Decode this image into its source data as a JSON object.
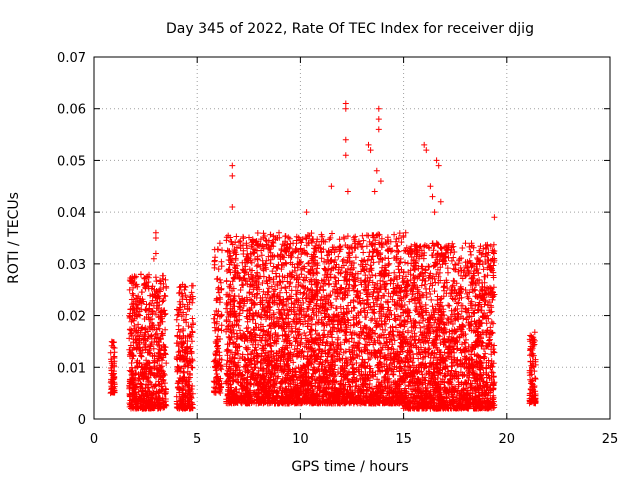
{
  "chart_data": {
    "type": "scatter",
    "title": "Day 345 of 2022, Rate Of TEC Index for receiver djig",
    "xlabel": "GPS time / hours",
    "ylabel": "ROTI / TECUs",
    "xlim": [
      0,
      25
    ],
    "ylim": [
      0,
      0.07
    ],
    "xticks": [
      0,
      5,
      10,
      15,
      20,
      25
    ],
    "yticks": [
      0,
      0.01,
      0.02,
      0.03,
      0.04,
      0.05,
      0.06,
      0.07
    ],
    "xtick_labels": [
      "0",
      "5",
      "10",
      "15",
      "20",
      "25"
    ],
    "ytick_labels": [
      "0",
      "0.01",
      "0.02",
      "0.03",
      "0.04",
      "0.05",
      "0.06",
      "0.07"
    ],
    "grid": true,
    "marker": "plus",
    "color": "#ff0000",
    "clusters": [
      {
        "x_range": [
          0.8,
          1.0
        ],
        "y_range": [
          0.005,
          0.015
        ],
        "density": 60
      },
      {
        "x_range": [
          1.7,
          3.5
        ],
        "y_range": [
          0.002,
          0.028
        ],
        "density": 700
      },
      {
        "x_range": [
          4.0,
          4.8
        ],
        "y_range": [
          0.002,
          0.026
        ],
        "density": 280
      },
      {
        "x_range": [
          5.8,
          6.2
        ],
        "y_range": [
          0.005,
          0.034
        ],
        "density": 120
      },
      {
        "x_range": [
          6.4,
          15.0
        ],
        "y_range": [
          0.003,
          0.036
        ],
        "density": 3600
      },
      {
        "x_range": [
          15.0,
          19.4
        ],
        "y_range": [
          0.002,
          0.034
        ],
        "density": 1900
      },
      {
        "x_range": [
          21.1,
          21.4
        ],
        "y_range": [
          0.003,
          0.017
        ],
        "density": 110
      }
    ],
    "notable_points": [
      {
        "x": 6.7,
        "y": 0.049
      },
      {
        "x": 6.7,
        "y": 0.047
      },
      {
        "x": 6.7,
        "y": 0.041
      },
      {
        "x": 12.2,
        "y": 0.061
      },
      {
        "x": 12.2,
        "y": 0.06
      },
      {
        "x": 12.2,
        "y": 0.054
      },
      {
        "x": 12.2,
        "y": 0.051
      },
      {
        "x": 12.3,
        "y": 0.044
      },
      {
        "x": 11.5,
        "y": 0.045
      },
      {
        "x": 10.3,
        "y": 0.04
      },
      {
        "x": 13.3,
        "y": 0.053
      },
      {
        "x": 13.4,
        "y": 0.052
      },
      {
        "x": 13.8,
        "y": 0.06
      },
      {
        "x": 13.8,
        "y": 0.058
      },
      {
        "x": 13.8,
        "y": 0.056
      },
      {
        "x": 13.7,
        "y": 0.048
      },
      {
        "x": 13.6,
        "y": 0.044
      },
      {
        "x": 13.9,
        "y": 0.046
      },
      {
        "x": 16.0,
        "y": 0.053
      },
      {
        "x": 16.1,
        "y": 0.052
      },
      {
        "x": 16.6,
        "y": 0.05
      },
      {
        "x": 16.7,
        "y": 0.049
      },
      {
        "x": 16.3,
        "y": 0.045
      },
      {
        "x": 16.4,
        "y": 0.043
      },
      {
        "x": 16.5,
        "y": 0.04
      },
      {
        "x": 16.8,
        "y": 0.042
      },
      {
        "x": 3.0,
        "y": 0.036
      },
      {
        "x": 3.0,
        "y": 0.035
      },
      {
        "x": 3.0,
        "y": 0.032
      },
      {
        "x": 2.9,
        "y": 0.031
      },
      {
        "x": 19.4,
        "y": 0.039
      },
      {
        "x": 15.1,
        "y": 0.036
      }
    ]
  }
}
